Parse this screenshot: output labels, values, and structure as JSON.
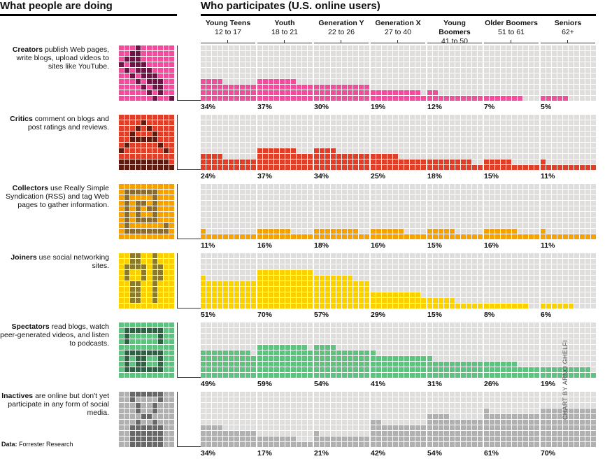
{
  "chart_data": {
    "type": "waffle",
    "title_left": "What people are doing",
    "title_right": "Who participates (U.S. online users)",
    "source_label": "Data:",
    "source": "Forrester Research",
    "credit": "CHART BY ARNO GHELFI",
    "empty_color": "#e0dedc",
    "age_groups": [
      {
        "name": "Young Teens",
        "range": "12 to 17"
      },
      {
        "name": "Youth",
        "range": "18 to 21"
      },
      {
        "name": "Generation Y",
        "range": "22 to 26"
      },
      {
        "name": "Generation X",
        "range": "27 to 40"
      },
      {
        "name": "Young Boomers",
        "range": "41 to 50"
      },
      {
        "name": "Older Boomers",
        "range": "51 to 61"
      },
      {
        "name": "Seniors",
        "range": "62+"
      }
    ],
    "series": [
      {
        "name": "Creators",
        "description": "publish Web pages, write blogs, upload videos to sites like YouTube.",
        "color": "#f24d9c",
        "icon_dark": "#6e1445",
        "icon": "pencil-icon",
        "values": [
          34,
          37,
          30,
          19,
          12,
          7,
          5
        ],
        "labels": [
          "34%",
          "37%",
          "30%",
          "19%",
          "12%",
          "7%",
          "5%"
        ]
      },
      {
        "name": "Critics",
        "description": "comment on blogs and post ratings and reviews.",
        "color": "#df3f28",
        "icon_dark": "#5c1a10",
        "icon": "speech-icon",
        "values": [
          24,
          37,
          34,
          25,
          18,
          15,
          11
        ],
        "labels": [
          "24%",
          "37%",
          "34%",
          "25%",
          "18%",
          "15%",
          "11%"
        ]
      },
      {
        "name": "Collectors",
        "description": "use Really Simple Syndication (RSS) and tag Web pages to gather information.",
        "color": "#f7a100",
        "icon_dark": "#8c6a2c",
        "icon": "rss-icon",
        "values": [
          11,
          16,
          18,
          16,
          15,
          16,
          11
        ],
        "labels": [
          "11%",
          "16%",
          "18%",
          "16%",
          "15%",
          "16%",
          "11%"
        ]
      },
      {
        "name": "Joiners",
        "description": "use social networking sites.",
        "color": "#fbd000",
        "icon_dark": "#8c7a2c",
        "icon": "people-icon",
        "values": [
          51,
          70,
          57,
          29,
          15,
          8,
          6
        ],
        "labels": [
          "51%",
          "70%",
          "57%",
          "29%",
          "15%",
          "8%",
          "6%"
        ]
      },
      {
        "name": "Spectators",
        "description": "read blogs, watch peer-generated videos, and listen to podcasts.",
        "color": "#5cc47f",
        "icon_dark": "#2e6242",
        "icon": "glasses-icon",
        "values": [
          49,
          59,
          54,
          41,
          31,
          26,
          19
        ],
        "labels": [
          "49%",
          "59%",
          "54%",
          "41%",
          "31%",
          "26%",
          "19%"
        ]
      },
      {
        "name": "Inactives",
        "description": "are online but don't yet participate in any form of social media.",
        "color": "#b0b0b0",
        "icon_dark": "#686868",
        "icon": "hourglass-icon",
        "values": [
          34,
          17,
          21,
          42,
          54,
          61,
          70
        ],
        "labels": [
          "34%",
          "17%",
          "21%",
          "42%",
          "54%",
          "61%",
          "70%"
        ]
      }
    ]
  }
}
